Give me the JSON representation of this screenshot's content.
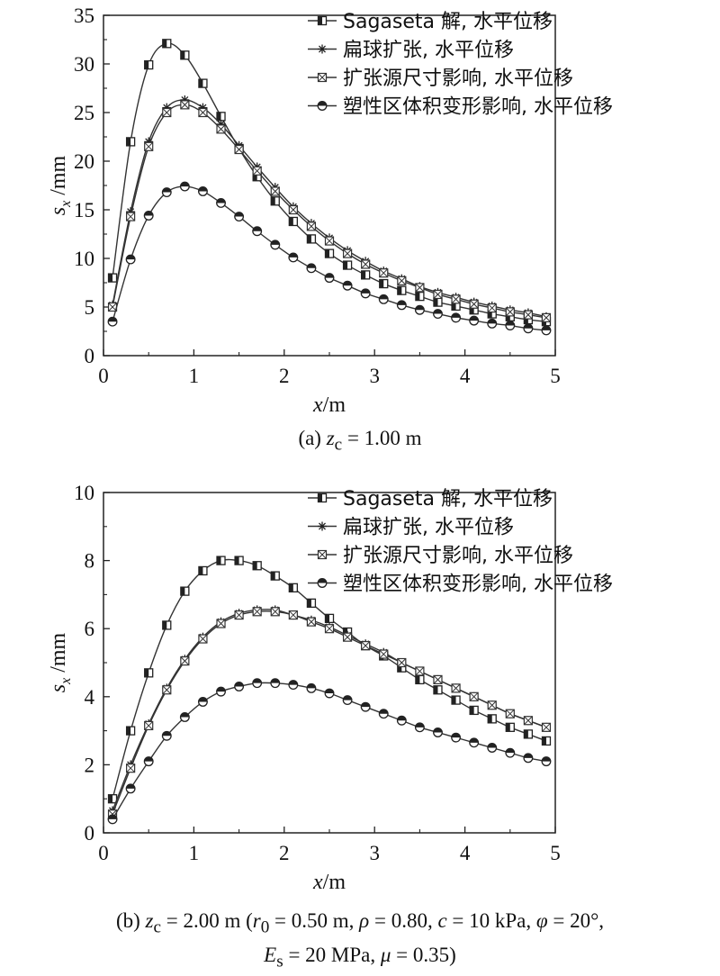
{
  "chart_data": [
    {
      "type": "line",
      "panel": "a",
      "caption": {
        "prefix": "(a) ",
        "var": "z",
        "sub": "c",
        "rest": " = 1.00 m"
      },
      "xlabel": {
        "var": "x",
        "unit": "/m"
      },
      "ylabel": {
        "var": "s",
        "sub": "x",
        "unit": " /mm"
      },
      "xlim": [
        0,
        5
      ],
      "ylim": [
        0,
        35
      ],
      "xticks": [
        0,
        1,
        2,
        3,
        4,
        5
      ],
      "yticks": [
        0,
        5,
        10,
        15,
        20,
        25,
        30,
        35
      ],
      "legend_position": "top-right",
      "x": [
        0.1,
        0.3,
        0.5,
        0.7,
        0.9,
        1.1,
        1.3,
        1.5,
        1.7,
        1.9,
        2.1,
        2.3,
        2.5,
        2.7,
        2.9,
        3.1,
        3.3,
        3.5,
        3.7,
        3.9,
        4.1,
        4.3,
        4.5,
        4.7,
        4.9
      ],
      "series": [
        {
          "name": "Sagaseta 解, 水平位移",
          "marker": "half-square",
          "values": [
            8.0,
            22.0,
            29.9,
            32.1,
            30.9,
            28.0,
            24.6,
            21.3,
            18.4,
            15.9,
            13.8,
            12.0,
            10.5,
            9.3,
            8.3,
            7.4,
            6.7,
            6.1,
            5.5,
            5.1,
            4.7,
            4.3,
            4.0,
            3.7,
            3.5
          ]
        },
        {
          "name": "扁球扩张, 水平位移",
          "marker": "asterisk",
          "values": [
            5.2,
            14.8,
            22.0,
            25.5,
            26.3,
            25.5,
            23.8,
            21.6,
            19.4,
            17.3,
            15.3,
            13.6,
            12.1,
            10.8,
            9.7,
            8.7,
            7.9,
            7.1,
            6.5,
            6.0,
            5.5,
            5.1,
            4.7,
            4.4,
            4.0
          ]
        },
        {
          "name": "扩张源尺寸影响, 水平位移",
          "marker": "crossed-square",
          "values": [
            5.0,
            14.3,
            21.5,
            25.0,
            25.8,
            25.0,
            23.3,
            21.2,
            19.0,
            16.9,
            15.0,
            13.3,
            11.8,
            10.5,
            9.4,
            8.5,
            7.7,
            7.0,
            6.3,
            5.8,
            5.3,
            4.9,
            4.5,
            4.2,
            3.9
          ]
        },
        {
          "name": "塑性区体积变形影响, 水平位移",
          "marker": "half-circle",
          "values": [
            3.5,
            9.9,
            14.4,
            16.8,
            17.4,
            16.9,
            15.7,
            14.3,
            12.8,
            11.4,
            10.1,
            9.0,
            8.0,
            7.2,
            6.4,
            5.8,
            5.2,
            4.7,
            4.3,
            3.9,
            3.6,
            3.3,
            3.1,
            2.8,
            2.6
          ]
        }
      ]
    },
    {
      "type": "line",
      "panel": "b",
      "caption": {
        "prefix": "(b) ",
        "var": "z",
        "sub": "c",
        "rest": " = 2.00 m (",
        "line1b": [
          {
            "t": "r",
            "i": true
          },
          {
            "t": "0",
            "sub": true
          },
          {
            "t": " = 0.50 m, "
          },
          {
            "t": "ρ",
            "i": true
          },
          {
            "t": " = 0.80, "
          },
          {
            "t": "c",
            "i": true
          },
          {
            "t": " = 10 kPa, "
          },
          {
            "t": "φ",
            "i": true
          },
          {
            "t": " = 20°,"
          }
        ],
        "line2": [
          {
            "t": "E",
            "i": true
          },
          {
            "t": "s",
            "sub": true
          },
          {
            "t": " = 20 MPa, "
          },
          {
            "t": "μ",
            "i": true
          },
          {
            "t": " = 0.35)"
          }
        ]
      },
      "xlabel": {
        "var": "x",
        "unit": "/m"
      },
      "ylabel": {
        "var": "s",
        "sub": "x",
        "unit": " /mm"
      },
      "xlim": [
        0,
        5
      ],
      "ylim": [
        0,
        10
      ],
      "xticks": [
        0,
        1,
        2,
        3,
        4,
        5
      ],
      "yticks": [
        0,
        2,
        4,
        6,
        8,
        10
      ],
      "legend_position": "top-right",
      "x": [
        0.1,
        0.3,
        0.5,
        0.7,
        0.9,
        1.1,
        1.3,
        1.5,
        1.7,
        1.9,
        2.1,
        2.3,
        2.5,
        2.7,
        2.9,
        3.1,
        3.3,
        3.5,
        3.7,
        3.9,
        4.1,
        4.3,
        4.5,
        4.7,
        4.9
      ],
      "series": [
        {
          "name": "Sagaseta 解, 水平位移",
          "marker": "half-square",
          "values": [
            1.0,
            3.0,
            4.7,
            6.1,
            7.1,
            7.7,
            8.0,
            8.0,
            7.85,
            7.55,
            7.2,
            6.75,
            6.3,
            5.9,
            5.5,
            5.2,
            4.85,
            4.5,
            4.2,
            3.9,
            3.6,
            3.35,
            3.1,
            2.9,
            2.7
          ]
        },
        {
          "name": "扁球扩张, 水平位移",
          "marker": "asterisk",
          "values": [
            0.65,
            2.0,
            3.2,
            4.25,
            5.1,
            5.75,
            6.2,
            6.45,
            6.55,
            6.55,
            6.4,
            6.25,
            6.05,
            5.8,
            5.55,
            5.3,
            5.0,
            4.75,
            4.5,
            4.25,
            4.0,
            3.75,
            3.5,
            3.3,
            3.1
          ]
        },
        {
          "name": "扩张源尺寸影响, 水平位移",
          "marker": "crossed-square",
          "values": [
            0.55,
            1.9,
            3.15,
            4.2,
            5.05,
            5.7,
            6.15,
            6.4,
            6.5,
            6.5,
            6.4,
            6.2,
            6.0,
            5.75,
            5.5,
            5.25,
            5.0,
            4.75,
            4.5,
            4.25,
            4.0,
            3.75,
            3.5,
            3.3,
            3.1
          ]
        },
        {
          "name": "塑性区体积变形影响, 水平位移",
          "marker": "half-circle",
          "values": [
            0.4,
            1.3,
            2.1,
            2.85,
            3.4,
            3.85,
            4.15,
            4.3,
            4.4,
            4.4,
            4.35,
            4.25,
            4.1,
            3.9,
            3.7,
            3.5,
            3.3,
            3.1,
            2.95,
            2.8,
            2.65,
            2.5,
            2.35,
            2.2,
            2.1
          ]
        }
      ]
    }
  ]
}
